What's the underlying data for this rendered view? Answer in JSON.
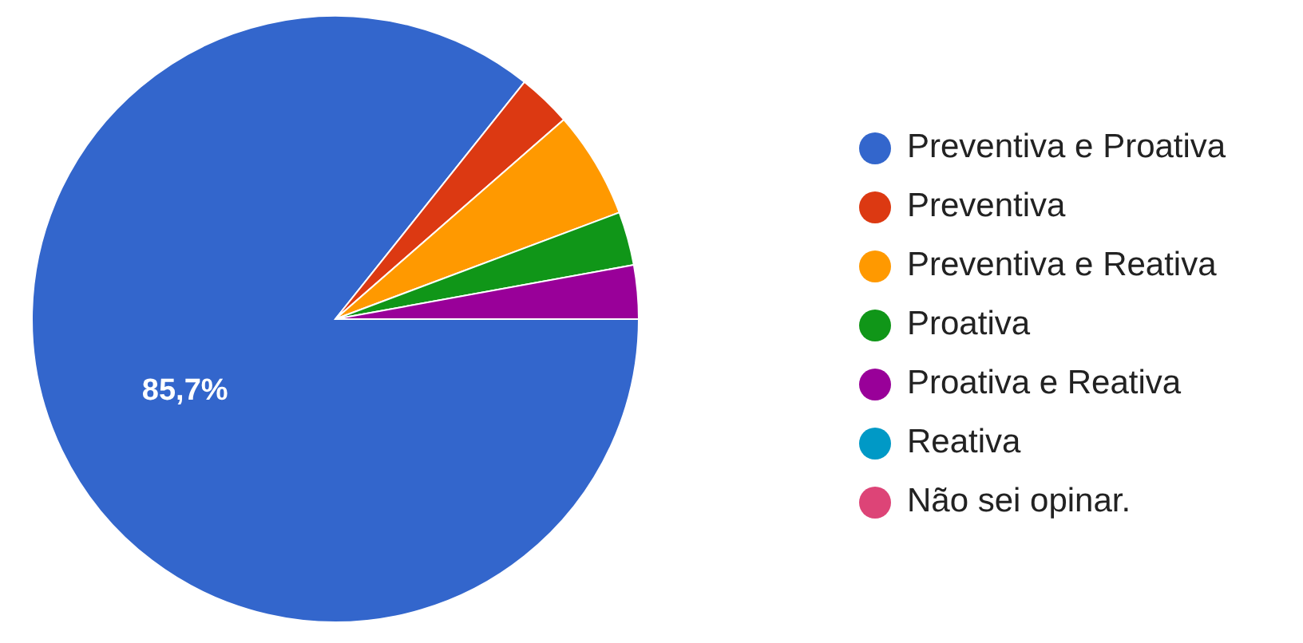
{
  "chart_data": {
    "type": "pie",
    "categories": [
      "Preventiva e Proativa",
      "Preventiva",
      "Preventiva e Reativa",
      "Proativa",
      "Proativa e Reativa",
      "Reativa",
      "Não sei opinar."
    ],
    "values": [
      85.71,
      2.86,
      5.71,
      2.86,
      2.86,
      0,
      0
    ],
    "colors": [
      "#3366cc",
      "#dc3912",
      "#ff9900",
      "#109618",
      "#990099",
      "#0099c6",
      "#dd4477"
    ],
    "value_labels": [
      "85,7%",
      null,
      null,
      null,
      null,
      null,
      null
    ],
    "legend": "right"
  }
}
